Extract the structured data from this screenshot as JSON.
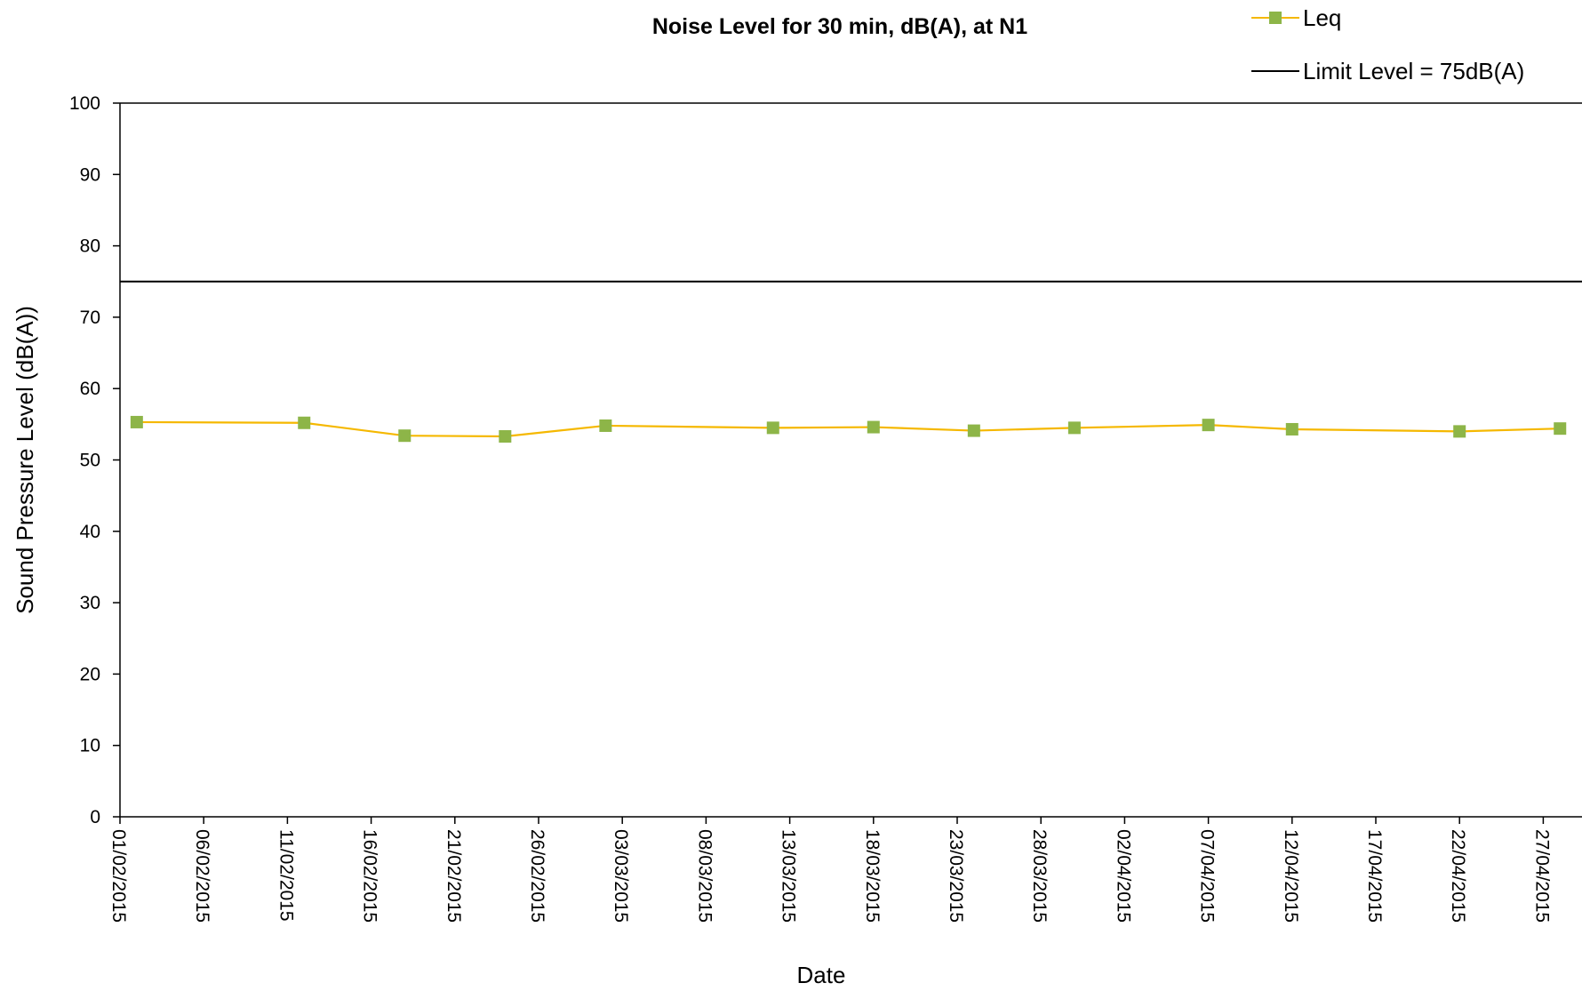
{
  "chart_data": {
    "type": "line",
    "title": "Noise Level for 30 min, dB(A), at N1",
    "xlabel": "Date",
    "ylabel": "Sound Pressure Level (dB(A))",
    "ylim": [
      0,
      100
    ],
    "yticks": [
      0,
      10,
      20,
      30,
      40,
      50,
      60,
      70,
      80,
      90,
      100
    ],
    "xlim": [
      "01/02/2015",
      "02/05/2015"
    ],
    "xticks": [
      "01/02/2015",
      "06/02/2015",
      "11/02/2015",
      "16/02/2015",
      "21/02/2015",
      "26/02/2015",
      "03/03/2015",
      "08/03/2015",
      "13/03/2015",
      "18/03/2015",
      "23/03/2015",
      "28/03/2015",
      "02/04/2015",
      "07/04/2015",
      "12/04/2015",
      "17/04/2015",
      "22/04/2015",
      "27/04/2015"
    ],
    "grid": false,
    "legend_position": "top-right",
    "series": [
      {
        "name": "Leq",
        "color": "#F5B800",
        "marker_color": "#8DB548",
        "marker": "square",
        "x": [
          "02/02/2015",
          "12/02/2015",
          "18/02/2015",
          "24/02/2015",
          "02/03/2015",
          "12/03/2015",
          "18/03/2015",
          "24/03/2015",
          "30/03/2015",
          "07/04/2015",
          "12/04/2015",
          "22/04/2015",
          "28/04/2015"
        ],
        "values": [
          55.3,
          55.2,
          53.4,
          53.3,
          54.8,
          54.5,
          54.6,
          54.1,
          54.5,
          54.9,
          54.3,
          54.0,
          54.4
        ]
      },
      {
        "name": "Limit Level = 75dB(A)",
        "color": "#000000",
        "type": "reference_line",
        "value": 75
      }
    ]
  }
}
